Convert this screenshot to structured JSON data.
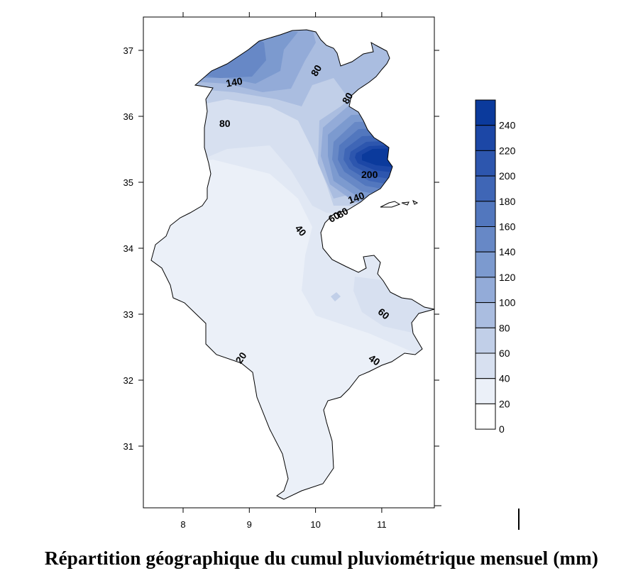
{
  "map": {
    "x_ticks": [
      "8",
      "9",
      "10",
      "11"
    ],
    "y_ticks": [
      "37",
      "36",
      "35",
      "34",
      "33",
      "32",
      "31"
    ],
    "contour_labels": [
      "140",
      "80",
      "80",
      "80",
      "200",
      "140",
      "80",
      "60",
      "40",
      "60",
      "20",
      "40"
    ],
    "caption": "Répartition géographique du cumul pluviométrique mensuel (mm)"
  },
  "legend": {
    "levels": [
      "240",
      "220",
      "200",
      "180",
      "160",
      "140",
      "120",
      "100",
      "80",
      "60",
      "40",
      "20",
      "0"
    ],
    "colors": [
      "#0b3a9c",
      "#1c47a6",
      "#2d56ae",
      "#3f66b6",
      "#5277be",
      "#6788c6",
      "#7c9acf",
      "#93abd8",
      "#aabde0",
      "#c1cfe8",
      "#d7e0f0",
      "#ebf0f8",
      "#ffffff"
    ]
  }
}
